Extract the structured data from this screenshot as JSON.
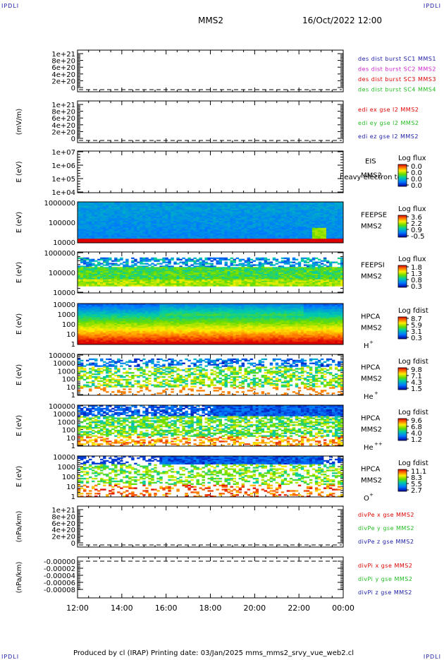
{
  "corner_label": "IPDLI",
  "header": {
    "spacecraft": "MMS2",
    "date": "16/Oct/2022 12:00"
  },
  "footer": "Produced by cl (IRAP)   Printing date: 03/Jan/2025   mms_mms2_srvy_vue_web2.cl",
  "time_axis": [
    "12:00",
    "14:00",
    "16:00",
    "18:00",
    "20:00",
    "22:00",
    "00:00"
  ],
  "chart_data": [
    {
      "type": "line",
      "ylabel": "",
      "yticks": [
        "1e+21",
        "8e+20",
        "6e+20",
        "4e+20",
        "2e+20",
        "0"
      ],
      "legend": [
        {
          "label": "des dist burst SC1 MMS1",
          "color": "#1a1aa6"
        },
        {
          "label": "des dist burst SC2 MMS2",
          "color": "#cc22cc"
        },
        {
          "label": "des dist burst SC3 MMS3",
          "color": "#dd0000"
        },
        {
          "label": "des dist burst SC4 MMS4",
          "color": "#22bb22"
        }
      ]
    },
    {
      "type": "line",
      "ylabel": "(mV/m)",
      "yticks": [
        "1e+21",
        "8e+20",
        "6e+20",
        "4e+20",
        "2e+20",
        "0"
      ],
      "legend": [
        {
          "label": "edi ex gse l2 MMS2",
          "color": "#dd0000"
        },
        {
          "label": "edi ey gse l2 MMS2",
          "color": "#22bb22"
        },
        {
          "label": "edi ez gse l2 MMS2",
          "color": "#1a1aa6"
        }
      ]
    },
    {
      "type": "heatmap",
      "ylabel": "E (eV)",
      "yticks": [
        "1e+07",
        "1e+06",
        "1e+05",
        "1e+04"
      ],
      "instrument": "EIS",
      "spacecraft": "MMS2",
      "overlay": "heavy electron to",
      "cbar_title": "Log flux",
      "cbar_ticks": [
        "0.0",
        "0.0",
        "0.0",
        "0.0"
      ]
    },
    {
      "type": "heatmap",
      "ylabel": "E (eV)",
      "yticks": [
        "1000000",
        "100000",
        "10000"
      ],
      "instrument": "FEEPSE",
      "spacecraft": "MMS2",
      "cbar_title": "Log flux",
      "cbar_ticks": [
        "3.6",
        "2.2",
        "0.9",
        "-0.5"
      ]
    },
    {
      "type": "heatmap",
      "ylabel": "E (eV)",
      "yticks": [
        "1000000",
        "100000",
        "10000"
      ],
      "instrument": "FEEPSI",
      "spacecraft": "MMS2",
      "cbar_title": "Log flux",
      "cbar_ticks": [
        "1.8",
        "1.3",
        "0.8",
        "0.3"
      ]
    },
    {
      "type": "heatmap",
      "ylabel": "E (eV)",
      "yticks": [
        "10000",
        "1000",
        "100",
        "10",
        "1"
      ],
      "instrument": "HPCA",
      "spacecraft": "MMS2",
      "species": "H",
      "charge": "+",
      "cbar_title": "Log fdist",
      "cbar_ticks": [
        "8.7",
        "5.9",
        "3.1",
        "0.3"
      ]
    },
    {
      "type": "heatmap",
      "ylabel": "E (eV)",
      "yticks": [
        "100000",
        "10000",
        "1000",
        "100",
        "10",
        "1"
      ],
      "instrument": "HPCA",
      "spacecraft": "MMS2",
      "species": "He",
      "charge": "+",
      "cbar_title": "Log fdist",
      "cbar_ticks": [
        "9.8",
        "7.1",
        "4.3",
        "1.5"
      ]
    },
    {
      "type": "heatmap",
      "ylabel": "E (eV)",
      "yticks": [
        "100000",
        "10000",
        "1000",
        "100",
        "10",
        "1"
      ],
      "instrument": "HPCA",
      "spacecraft": "MMS2",
      "species": "He",
      "charge": "++",
      "cbar_title": "Log fdist",
      "cbar_ticks": [
        "9.6",
        "6.8",
        "4.0",
        "1.2"
      ]
    },
    {
      "type": "heatmap",
      "ylabel": "E (eV)",
      "yticks": [
        "10000",
        "1000",
        "100",
        "10",
        "1"
      ],
      "instrument": "HPCA",
      "spacecraft": "MMS2",
      "species": "O",
      "charge": "+",
      "cbar_title": "Log fdist",
      "cbar_ticks": [
        "11.1",
        "8.3",
        "5.5",
        "2.7"
      ]
    },
    {
      "type": "line",
      "ylabel": "(nPa/km)",
      "yticks": [
        "1e+21",
        "8e+20",
        "6e+20",
        "4e+20",
        "2e+20",
        "0"
      ],
      "legend": [
        {
          "label": "divPe x gse MMS2",
          "color": "#dd0000"
        },
        {
          "label": "divPe y gse MMS2",
          "color": "#22bb22"
        },
        {
          "label": "divPe z gse MMS2",
          "color": "#1a1aa6"
        }
      ]
    },
    {
      "type": "line",
      "ylabel": "(nPa/km)",
      "yticks": [
        "-0.00000",
        "-0.00002",
        "-0.00004",
        "-0.00006",
        "-0.00008"
      ],
      "legend": [
        {
          "label": "divPi x gse MMS2",
          "color": "#dd0000"
        },
        {
          "label": "divPi y gse MMS2",
          "color": "#22bb22"
        },
        {
          "label": "divPi z gse MMS2",
          "color": "#1a1aa6"
        }
      ]
    }
  ]
}
